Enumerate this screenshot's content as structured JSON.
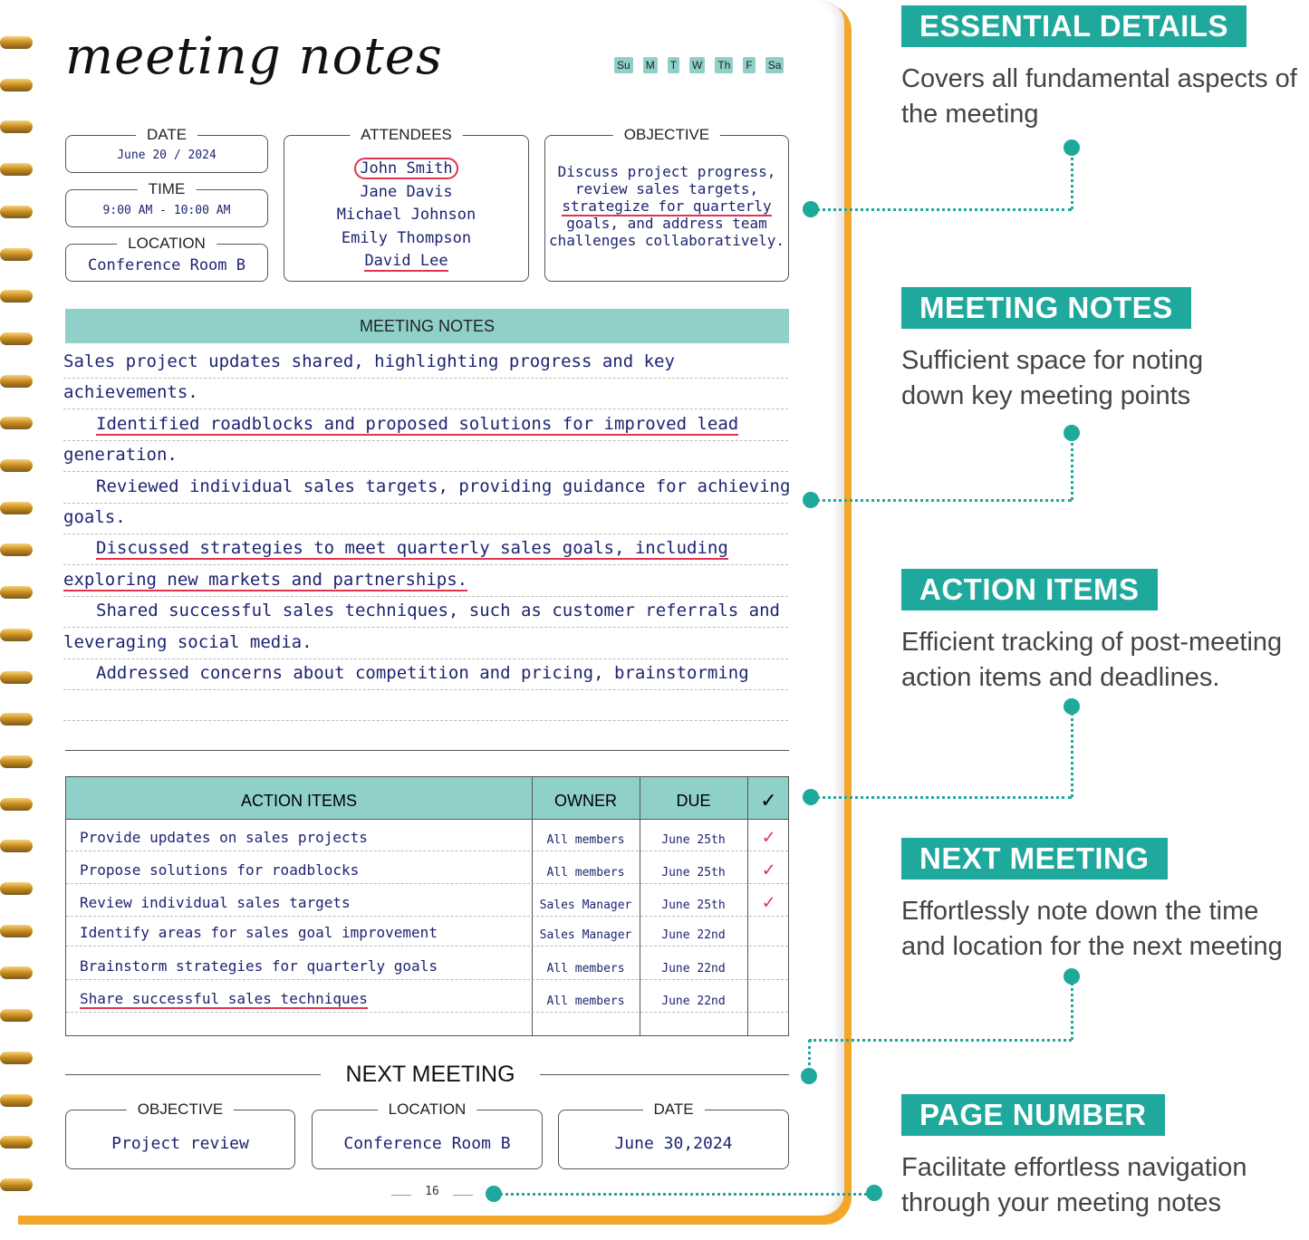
{
  "page": {
    "title": "meeting notes",
    "days": [
      "Su",
      "M",
      "T",
      "W",
      "Th",
      "F",
      "Sa"
    ],
    "date": {
      "label": "DATE",
      "value": "June 20 / 2024"
    },
    "time": {
      "label": "TIME",
      "value": "9:00 AM - 10:00 AM"
    },
    "location": {
      "label": "LOCATION",
      "value": "Conference Room B"
    },
    "attendees": {
      "label": "ATTENDEES",
      "names": [
        "John Smith",
        "Jane Davis",
        "Michael Johnson",
        "Emily Thompson",
        "David Lee"
      ]
    },
    "objective": {
      "label": "OBJECTIVE",
      "lines": [
        "Discuss project progress,",
        "review sales targets,",
        "strategize for quarterly",
        "goals, and address team",
        "challenges collaboratively."
      ]
    },
    "notes": {
      "label": "MEETING NOTES",
      "lines": [
        "Sales project updates shared, highlighting progress and key",
        "achievements.",
        "Identified roadblocks and proposed solutions for improved lead",
        "generation.",
        "Reviewed individual sales targets, providing guidance for achieving",
        "goals.",
        "Discussed strategies to meet quarterly sales goals, including",
        "exploring new markets and partnerships.",
        "Shared successful sales techniques, such as customer referrals and",
        "leveraging social media.",
        "Addressed concerns about competition and pricing, brainstorming",
        ""
      ]
    },
    "actions": {
      "headers": [
        "ACTION ITEMS",
        "OWNER",
        "DUE",
        "✓"
      ],
      "rows": [
        {
          "item": "Provide updates on sales projects",
          "owner": "All members",
          "due": "June 25th",
          "done": true
        },
        {
          "item": "Propose solutions for roadblocks",
          "owner": "All members",
          "due": "June 25th",
          "done": true
        },
        {
          "item": "Review individual sales targets",
          "owner": "Sales Manager",
          "due": "June 25th",
          "done": true
        },
        {
          "item": "Identify areas for sales goal improvement",
          "owner": "Sales Manager",
          "due": "June 22nd",
          "done": false
        },
        {
          "item": "Brainstorm strategies for quarterly goals",
          "owner": "All members",
          "due": "June 22nd",
          "done": false
        },
        {
          "item": "Share successful sales techniques",
          "owner": "All members",
          "due": "June 22nd",
          "done": false
        }
      ]
    },
    "next": {
      "title": "NEXT MEETING",
      "objective": {
        "label": "OBJECTIVE",
        "value": "Project review"
      },
      "location": {
        "label": "LOCATION",
        "value": "Conference Room B"
      },
      "date": {
        "label": "DATE",
        "value": "June 30,2024"
      }
    },
    "page_number": "16"
  },
  "callouts": [
    {
      "title": "ESSENTIAL DETAILS",
      "desc": "Covers all fundamental aspects of the meeting"
    },
    {
      "title": "MEETING NOTES",
      "desc": "Sufficient space for noting down key meeting points"
    },
    {
      "title": "ACTION ITEMS",
      "desc": "Efficient tracking of post-meeting action items and deadlines."
    },
    {
      "title": "NEXT MEETING",
      "desc": "Effortlessly note down the time and location for the next meeting"
    },
    {
      "title": "PAGE NUMBER",
      "desc": "Facilitate effortless navigation through your meeting notes"
    }
  ],
  "colors": {
    "accent": "#1fa89c",
    "band": "#8fd0c9",
    "cover": "#f2a62a",
    "ink": "#1d2470",
    "pen": "#e0344f"
  }
}
